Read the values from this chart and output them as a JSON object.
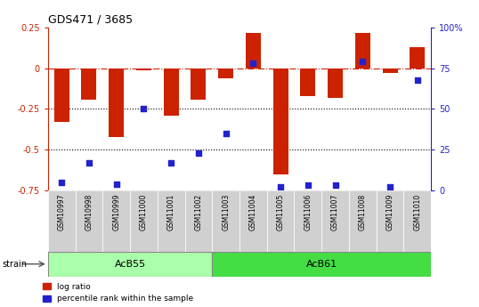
{
  "title": "GDS471 / 3685",
  "samples": [
    "GSM10997",
    "GSM10998",
    "GSM10999",
    "GSM11000",
    "GSM11001",
    "GSM11002",
    "GSM11003",
    "GSM11004",
    "GSM11005",
    "GSM11006",
    "GSM11007",
    "GSM11008",
    "GSM11009",
    "GSM11010"
  ],
  "log_ratio": [
    -0.33,
    -0.19,
    -0.42,
    -0.01,
    -0.29,
    -0.19,
    -0.06,
    0.22,
    -0.65,
    -0.17,
    -0.18,
    0.22,
    -0.03,
    0.13
  ],
  "percentile": [
    5,
    17,
    4,
    50,
    17,
    23,
    35,
    78,
    2,
    3,
    3,
    79,
    2,
    68
  ],
  "group1_label": "AcB55",
  "group1_indices": [
    0,
    1,
    2,
    3,
    4,
    5
  ],
  "group2_label": "AcB61",
  "group2_indices": [
    6,
    7,
    8,
    9,
    10,
    11,
    12,
    13
  ],
  "bar_color": "#cc2200",
  "dot_color": "#2222cc",
  "bg_color": "#ffffff",
  "ax_left_color": "#cc2200",
  "ax_right_color": "#2222cc",
  "plot_bg_color": "#ffffff",
  "ylim_left": [
    -0.75,
    0.25
  ],
  "ylim_right": [
    0,
    100
  ],
  "yticks_left": [
    -0.75,
    -0.5,
    -0.25,
    0,
    0.25
  ],
  "ytick_labels_left": [
    "-0.75",
    "-0.5",
    "-0.25",
    "0",
    "0.25"
  ],
  "yticks_right": [
    0,
    25,
    50,
    75,
    100
  ],
  "ytick_labels_right": [
    "0",
    "25",
    "50",
    "75",
    "100%"
  ],
  "dotted_lines": [
    -0.25,
    -0.5
  ],
  "group1_color": "#aaffaa",
  "group2_color": "#44dd44",
  "tick_box_color": "#d0d0d0",
  "bar_width": 0.55,
  "dot_size": 22
}
